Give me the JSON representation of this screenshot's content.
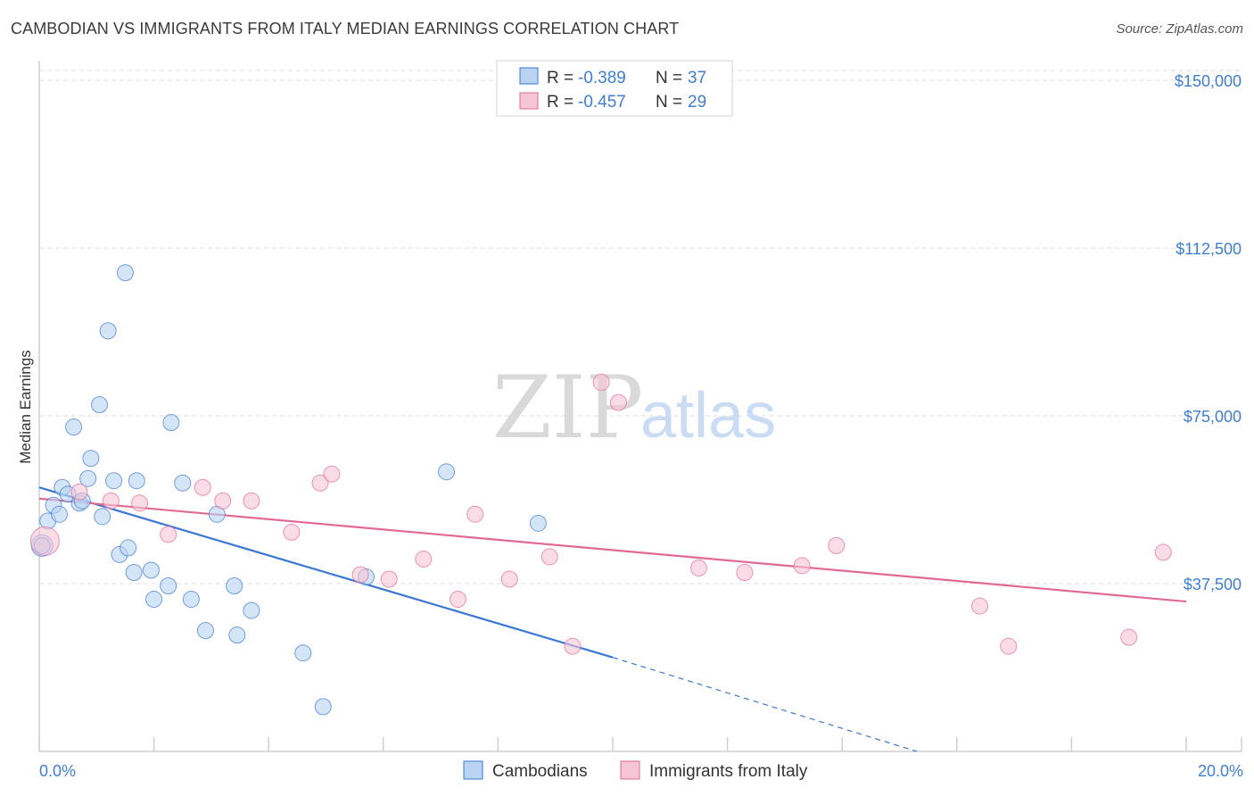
{
  "title": "CAMBODIAN VS IMMIGRANTS FROM ITALY MEDIAN EARNINGS CORRELATION CHART",
  "source": "Source: ZipAtlas.com",
  "watermark": {
    "zip": "ZIP",
    "atlas": "atlas"
  },
  "colors": {
    "blue": "#3a78d4",
    "blue_fill": "#b9d3f3",
    "pink": "#e26994",
    "pink_fill": "#f6c5d5",
    "grid": "#dddddd",
    "axis_text": "#3f7fd1"
  },
  "legend": {
    "r_label": "R =",
    "n_label": "N =",
    "rows": [
      {
        "r": "-0.389",
        "n": "37",
        "color": "blue"
      },
      {
        "r": "-0.457",
        "n": "29",
        "color": "pink"
      }
    ]
  },
  "bottom_legend": [
    "Cambodians",
    "Immigrants from Italy"
  ],
  "chart_data": {
    "type": "scatter",
    "xlabel": "",
    "ylabel": "Median Earnings",
    "xlim": [
      0,
      20
    ],
    "ylim": [
      0,
      154000
    ],
    "x_tick_labels": [
      "0.0%",
      "20.0%"
    ],
    "y_ticks": [
      37500,
      75000,
      112500,
      150000
    ],
    "y_tick_labels": [
      "$37,500",
      "$75,000",
      "$112,500",
      "$150,000"
    ],
    "series": [
      {
        "name": "Cambodians",
        "color": "blue",
        "points": [
          [
            0.05,
            46000,
            12
          ],
          [
            0.15,
            51500,
            9
          ],
          [
            0.25,
            55000,
            9
          ],
          [
            0.35,
            53000,
            9
          ],
          [
            0.4,
            59000,
            9
          ],
          [
            0.5,
            57500,
            9
          ],
          [
            0.6,
            72500,
            9
          ],
          [
            0.7,
            55500,
            9
          ],
          [
            0.75,
            56000,
            9
          ],
          [
            0.85,
            61000,
            9
          ],
          [
            0.9,
            65500,
            9
          ],
          [
            1.05,
            77500,
            9
          ],
          [
            1.1,
            52500,
            9
          ],
          [
            1.2,
            94000,
            9
          ],
          [
            1.3,
            60500,
            9
          ],
          [
            1.4,
            44000,
            9
          ],
          [
            1.5,
            107000,
            9
          ],
          [
            1.55,
            45500,
            9
          ],
          [
            1.65,
            40000,
            9
          ],
          [
            1.7,
            60500,
            9
          ],
          [
            1.95,
            40500,
            9
          ],
          [
            2.0,
            34000,
            9
          ],
          [
            2.25,
            37000,
            9
          ],
          [
            2.3,
            73500,
            9
          ],
          [
            2.5,
            60000,
            9
          ],
          [
            2.65,
            34000,
            9
          ],
          [
            2.9,
            27000,
            9
          ],
          [
            3.1,
            53000,
            9
          ],
          [
            3.4,
            37000,
            9
          ],
          [
            3.45,
            26000,
            9
          ],
          [
            3.7,
            31500,
            9
          ],
          [
            4.6,
            22000,
            9
          ],
          [
            4.95,
            10000,
            9
          ],
          [
            5.7,
            39000,
            9
          ],
          [
            7.1,
            62500,
            9
          ],
          [
            8.7,
            51000,
            9
          ],
          [
            0.05,
            46000,
            9
          ]
        ]
      },
      {
        "name": "Immigrants from Italy",
        "color": "pink",
        "points": [
          [
            0.1,
            47000,
            16
          ],
          [
            0.7,
            58000,
            9
          ],
          [
            1.25,
            56000,
            9
          ],
          [
            1.75,
            55500,
            9
          ],
          [
            2.25,
            48500,
            9
          ],
          [
            2.85,
            59000,
            9
          ],
          [
            3.2,
            56000,
            9
          ],
          [
            3.7,
            56000,
            9
          ],
          [
            4.4,
            49000,
            9
          ],
          [
            4.9,
            60000,
            9
          ],
          [
            5.1,
            62000,
            9
          ],
          [
            5.6,
            39500,
            9
          ],
          [
            6.1,
            38500,
            9
          ],
          [
            6.7,
            43000,
            9
          ],
          [
            7.3,
            34000,
            9
          ],
          [
            7.6,
            53000,
            9
          ],
          [
            8.2,
            38500,
            9
          ],
          [
            8.9,
            43500,
            9
          ],
          [
            9.3,
            23500,
            9
          ],
          [
            9.8,
            82500,
            9
          ],
          [
            10.1,
            78000,
            9
          ],
          [
            11.5,
            41000,
            9
          ],
          [
            12.3,
            40000,
            9
          ],
          [
            13.3,
            41500,
            9
          ],
          [
            13.9,
            46000,
            9
          ],
          [
            16.4,
            32500,
            9
          ],
          [
            16.9,
            23500,
            9
          ],
          [
            19.0,
            25500,
            9
          ],
          [
            19.6,
            44500,
            9
          ]
        ]
      }
    ],
    "trend_lines": [
      {
        "series": "Cambodians",
        "color": "blue",
        "x_start": 0,
        "x_end": 10.0,
        "y_start": 59000,
        "y_end": 21000,
        "dashed_to_x": 15.3,
        "dashed_to_y": 0
      },
      {
        "series": "Immigrants from Italy",
        "color": "pink",
        "x_start": 0,
        "x_end": 20.0,
        "y_start": 56500,
        "y_end": 33500
      }
    ]
  }
}
